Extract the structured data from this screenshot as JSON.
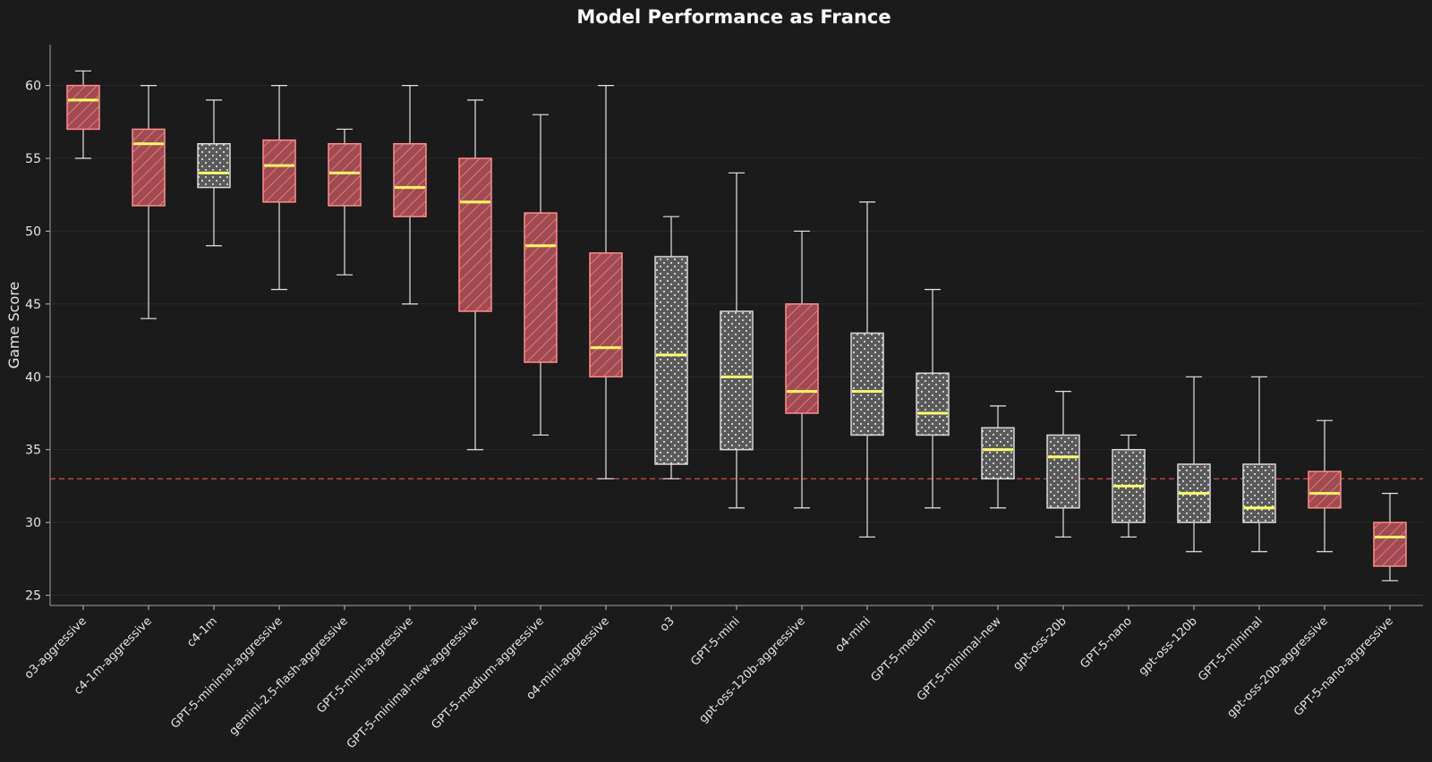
{
  "chart_data": {
    "type": "box",
    "title": "Model Performance as France",
    "xlabel": "",
    "ylabel": "Game Score",
    "ylim": [
      24.3,
      62.8
    ],
    "yticks": [
      25,
      30,
      35,
      40,
      45,
      50,
      55,
      60
    ],
    "reference_line": {
      "y": 33,
      "style": "dashed",
      "color": "#e05555"
    },
    "colors": {
      "background": "#1b1b1b",
      "aggressive_fill": "#a04a52",
      "aggressive_edge": "#ff8c8c",
      "standard_fill": "#5a5a5a",
      "standard_edge": "#d8d8d8",
      "median": "#ffff66",
      "whisker": "#e6e6e6"
    },
    "boxes": [
      {
        "label": "o3-aggressive",
        "variant": "aggressive",
        "min": 55,
        "q1": 57,
        "median": 59,
        "q3": 60,
        "max": 61
      },
      {
        "label": "c4-1m-aggressive",
        "variant": "aggressive",
        "min": 44,
        "q1": 51.75,
        "median": 56,
        "q3": 57,
        "max": 60
      },
      {
        "label": "c4-1m",
        "variant": "standard",
        "min": 49,
        "q1": 53,
        "median": 54,
        "q3": 56,
        "max": 59
      },
      {
        "label": "GPT-5-minimal-aggressive",
        "variant": "aggressive",
        "min": 46,
        "q1": 52,
        "median": 54.5,
        "q3": 56.25,
        "max": 60
      },
      {
        "label": "gemini-2.5-flash-aggressive",
        "variant": "aggressive",
        "min": 47,
        "q1": 51.75,
        "median": 54,
        "q3": 56,
        "max": 57
      },
      {
        "label": "GPT-5-mini-aggressive",
        "variant": "aggressive",
        "min": 45,
        "q1": 51,
        "median": 53,
        "q3": 56,
        "max": 60
      },
      {
        "label": "GPT-5-minimal-new-aggressive",
        "variant": "aggressive",
        "min": 35,
        "q1": 44.5,
        "median": 52,
        "q3": 55,
        "max": 59
      },
      {
        "label": "GPT-5-medium-aggressive",
        "variant": "aggressive",
        "min": 36,
        "q1": 41,
        "median": 49,
        "q3": 51.25,
        "max": 58
      },
      {
        "label": "o4-mini-aggressive",
        "variant": "aggressive",
        "min": 33,
        "q1": 40,
        "median": 42,
        "q3": 48.5,
        "max": 60
      },
      {
        "label": "o3",
        "variant": "standard",
        "min": 33,
        "q1": 34,
        "median": 41.5,
        "q3": 48.25,
        "max": 51
      },
      {
        "label": "GPT-5-mini",
        "variant": "standard",
        "min": 31,
        "q1": 35,
        "median": 40,
        "q3": 44.5,
        "max": 54
      },
      {
        "label": "gpt-oss-120b-aggressive",
        "variant": "aggressive",
        "min": 31,
        "q1": 37.5,
        "median": 39,
        "q3": 45,
        "max": 50
      },
      {
        "label": "o4-mini",
        "variant": "standard",
        "min": 29,
        "q1": 36,
        "median": 39,
        "q3": 43,
        "max": 52
      },
      {
        "label": "GPT-5-medium",
        "variant": "standard",
        "min": 31,
        "q1": 36,
        "median": 37.5,
        "q3": 40.25,
        "max": 46
      },
      {
        "label": "GPT-5-minimal-new",
        "variant": "standard",
        "min": 31,
        "q1": 33,
        "median": 35,
        "q3": 36.5,
        "max": 38
      },
      {
        "label": "gpt-oss-20b",
        "variant": "standard",
        "min": 29,
        "q1": 31,
        "median": 34.5,
        "q3": 36,
        "max": 39
      },
      {
        "label": "GPT-5-nano",
        "variant": "standard",
        "min": 29,
        "q1": 30,
        "median": 32.5,
        "q3": 35,
        "max": 36
      },
      {
        "label": "gpt-oss-120b",
        "variant": "standard",
        "min": 28,
        "q1": 30,
        "median": 32,
        "q3": 34,
        "max": 40
      },
      {
        "label": "GPT-5-minimal",
        "variant": "standard",
        "min": 28,
        "q1": 30,
        "median": 31,
        "q3": 34,
        "max": 40
      },
      {
        "label": "gpt-oss-20b-aggressive",
        "variant": "aggressive",
        "min": 28,
        "q1": 31,
        "median": 32,
        "q3": 33.5,
        "max": 37
      },
      {
        "label": "GPT-5-nano-aggressive",
        "variant": "aggressive",
        "min": 26,
        "q1": 27,
        "median": 29,
        "q3": 30,
        "max": 32
      }
    ]
  }
}
